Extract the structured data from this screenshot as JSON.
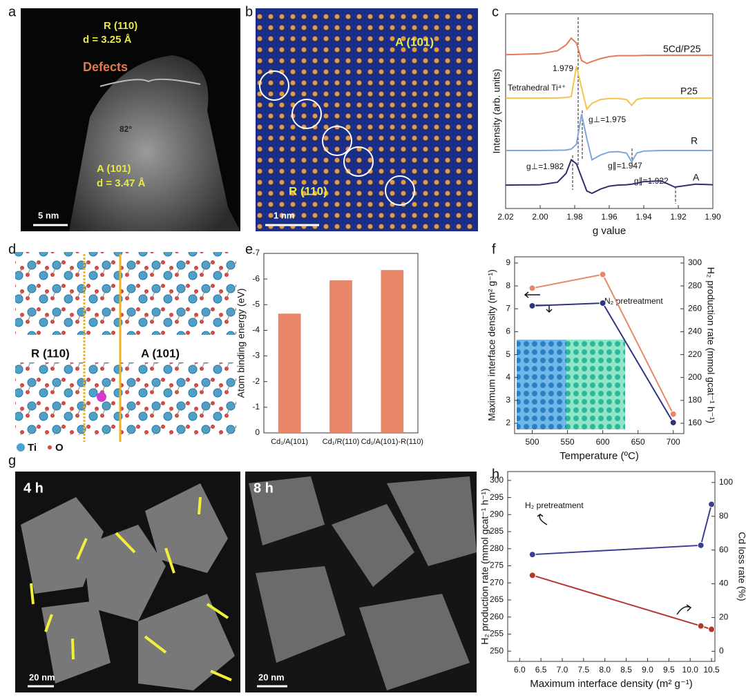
{
  "panel_labels": [
    "a",
    "b",
    "c",
    "d",
    "e",
    "f",
    "g",
    "h"
  ],
  "panel_a": {
    "r_label": "R (110)",
    "r_d": "d = 3.25 Å",
    "defects": "Defects",
    "angle": "82°",
    "a_label": "A (101)",
    "a_d": "d = 3.47 Å",
    "scale": "5 nm"
  },
  "panel_b": {
    "a_label": "A (101)",
    "r_label": "R (110)",
    "scale": "1 nm"
  },
  "panel_d": {
    "r_label": "R (110)",
    "a_label": "A (101)",
    "legend": [
      "Ti",
      "O"
    ]
  },
  "panel_g": {
    "left_time": "4 h",
    "right_time": "8 h",
    "left_scale": "20 nm",
    "right_scale": "20 nm"
  },
  "chart_data": [
    {
      "type": "line",
      "xlabel": "g value",
      "ylabel": "Intensity (arb. units)",
      "x": [
        2.02,
        2.0,
        1.99,
        1.985,
        1.982,
        1.979,
        1.976,
        1.973,
        1.97,
        1.965,
        1.96,
        1.955,
        1.95,
        1.947,
        1.944,
        1.94,
        1.93,
        1.922,
        1.91,
        1.9
      ],
      "xlim": [
        2.02,
        1.9
      ],
      "xticks": [
        2.02,
        {
          "value": 2.0,
          "label": "2.00"
        },
        1.98,
        1.96,
        1.94,
        1.92,
        {
          "value": 1.9,
          "label": "1.90"
        }
      ],
      "ylim": [
        0,
        10
      ],
      "series": [
        {
          "name": "5Cd/P25",
          "color": "#e8775a",
          "values": [
            7.9,
            7.95,
            8.1,
            8.4,
            8.75,
            8.5,
            7.6,
            7.45,
            7.55,
            7.7,
            7.8,
            7.85,
            7.85,
            7.85,
            7.85,
            7.87,
            7.87,
            7.87,
            7.87,
            7.87
          ]
        },
        {
          "name": "P25",
          "color": "#f0c34a",
          "values": [
            5.67,
            5.67,
            5.68,
            5.7,
            5.75,
            7.3,
            6.2,
            5.1,
            5.4,
            5.6,
            5.65,
            5.65,
            5.6,
            5.3,
            5.6,
            5.67,
            5.67,
            5.67,
            5.67,
            5.67
          ]
        },
        {
          "name": "R",
          "color": "#7fa7d6",
          "values": [
            2.98,
            2.98,
            2.99,
            3.0,
            3.05,
            3.3,
            4.85,
            3.6,
            2.5,
            2.75,
            2.9,
            2.92,
            2.85,
            2.4,
            2.85,
            2.95,
            2.98,
            2.98,
            2.98,
            2.98
          ]
        },
        {
          "name": "A",
          "color": "#2c2f6e",
          "values": [
            1.2,
            1.22,
            1.35,
            1.8,
            2.5,
            2.3,
            1.6,
            0.9,
            0.78,
            1.0,
            1.15,
            1.2,
            1.22,
            1.25,
            1.3,
            1.38,
            1.42,
            1.1,
            1.25,
            1.22
          ]
        }
      ],
      "annotations": [
        "1.979",
        "Tetrahedral Ti⁴⁺",
        "g⊥=1.975",
        "g∥=1.947",
        "g⊥=1.982",
        "g∥=1.922"
      ]
    },
    {
      "type": "bar",
      "ylabel": "Atom binding energy (eV)",
      "categories": [
        "Cd₁/A(101)",
        "Cd₁/R(110)",
        "Cd₁/A(101)-R(110)"
      ],
      "values": [
        -4.65,
        -5.95,
        -6.35
      ],
      "color": "#e8866a",
      "ylim": [
        0,
        -7
      ],
      "yticks": [
        0,
        -1,
        -2,
        -3,
        -4,
        -5,
        -6,
        -7
      ]
    },
    {
      "type": "line",
      "xlabel": "Temperature (ºC)",
      "ylabel": "Maximum interface density (m² g⁻¹)",
      "y2label": "H₂ production rate (mmol gcat⁻¹ h⁻¹)",
      "x": [
        500,
        600,
        700
      ],
      "xlim": [
        475,
        715
      ],
      "xticks": [
        500,
        550,
        600,
        650,
        700
      ],
      "ylim": [
        1.55,
        9.27
      ],
      "yticks": [
        2,
        3,
        4,
        5,
        6,
        7,
        8,
        9
      ],
      "y2lim": [
        151,
        305.4
      ],
      "y2ticks": [
        160,
        180,
        200,
        220,
        240,
        260,
        280,
        300
      ],
      "markers": true,
      "series": [
        {
          "color": "#e8866a",
          "values": [
            7.9,
            8.5,
            2.4
          ]
        },
        {
          "color": "#2d3480",
          "axis": "y2",
          "values": [
            262.6,
            265,
            160.6
          ]
        }
      ],
      "annotations": [
        "N₂ pretreatment"
      ]
    },
    {
      "type": "line",
      "xlabel": "Maximum interface density (m² g⁻¹)",
      "ylabel": "H₂ production rate (mmol gcat⁻¹ h⁻¹)",
      "y2label": "Cd loss rate (%)",
      "x": [
        6.3,
        10.25,
        10.5
      ],
      "xlim": [
        5.72,
        10.58
      ],
      "xticks": [
        {
          "value": 6,
          "label": "6.0"
        },
        6.5,
        {
          "value": 7,
          "label": "7.0"
        },
        7.5,
        {
          "value": 8,
          "label": "8.0"
        },
        8.5,
        {
          "value": 9,
          "label": "9.0"
        },
        9.5,
        {
          "value": 10,
          "label": "10.0"
        },
        10.5
      ],
      "ylim": [
        247,
        302.6
      ],
      "yticks": [
        250,
        255,
        260,
        265,
        270,
        275,
        280,
        285,
        290,
        295,
        300
      ],
      "y2lim": [
        -6,
        106.5
      ],
      "y2ticks": [
        0,
        20,
        40,
        60,
        80,
        100
      ],
      "markers": true,
      "series": [
        {
          "color": "#3a3f93",
          "values": [
            278.3,
            281,
            293
          ]
        },
        {
          "color": "#b4362b",
          "axis": "y2",
          "values": [
            45,
            15,
            13
          ]
        }
      ],
      "annotations": [
        "H₂ pretreatment"
      ]
    }
  ]
}
